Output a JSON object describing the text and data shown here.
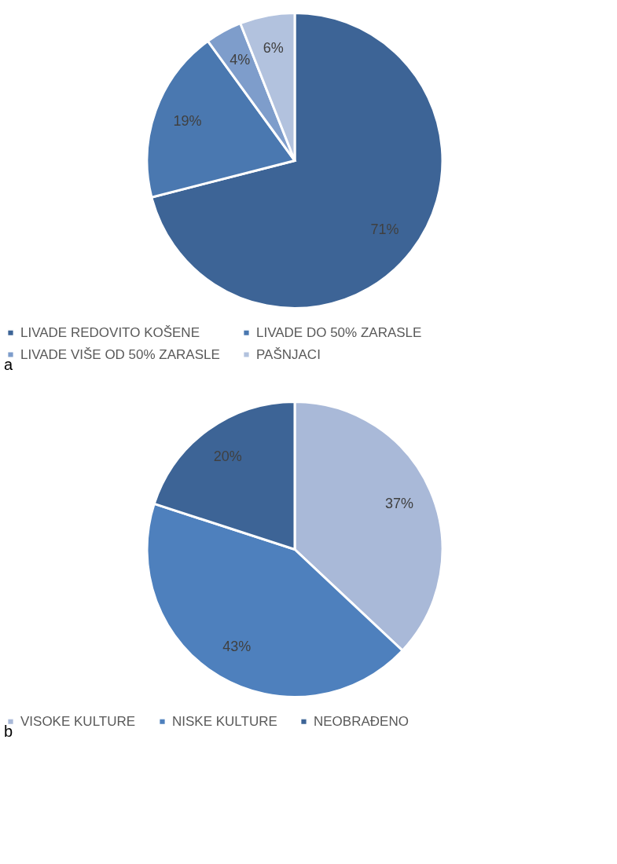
{
  "chart_data": [
    {
      "type": "pie",
      "categories": [
        "LIVADE REDOVITO KOŠENE",
        "LIVADE DO 50% ZARASLE",
        "LIVADE VIŠE OD 50% ZARASLE",
        "PAŠNJACI"
      ],
      "values": [
        71,
        19,
        4,
        6
      ],
      "value_labels": [
        "71%",
        "19%",
        "4%",
        "6%"
      ],
      "colors": [
        "#3d6496",
        "#4a78b0",
        "#7e9dcb",
        "#b2c2de"
      ],
      "legend": "bottom",
      "annotations": [
        "a"
      ]
    },
    {
      "type": "pie",
      "categories": [
        "VISOKE KULTURE",
        "NISKE KULTURE",
        "NEOBRAĐENO"
      ],
      "values": [
        37,
        43,
        20
      ],
      "value_labels": [
        "37%",
        "43%",
        "20%"
      ],
      "colors": [
        "#a9b9d8",
        "#4e80bd",
        "#3d6496"
      ],
      "legend": "bottom",
      "annotations": [
        "b"
      ]
    }
  ]
}
